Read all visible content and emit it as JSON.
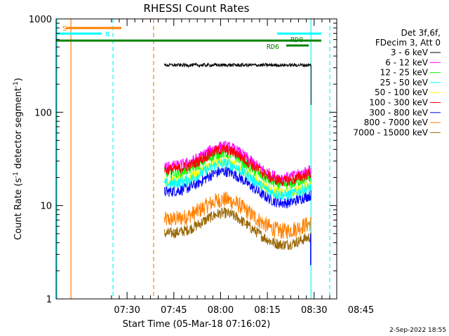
{
  "chart_data": {
    "type": "line",
    "title": "RHESSI Count Rates",
    "xlabel": "Start Time (05-Mar-18 07:16:02)",
    "ylabel_main": "Count Rate (s",
    "ylabel_sup1": "-1",
    "ylabel_mid": " detector segment",
    "ylabel_sup2": "-1",
    "ylabel_end": ")",
    "y_scale": "log",
    "ylim": [
      1,
      1000
    ],
    "y_ticks": [
      "1",
      "10",
      "100",
      "1000"
    ],
    "xlim_minutes": [
      7.25,
      97.25
    ],
    "x_ticks": [
      {
        "label": "07:30",
        "minute": 30
      },
      {
        "label": "07:45",
        "minute": 45
      },
      {
        "label": "08:00",
        "minute": 60
      },
      {
        "label": "08:15",
        "minute": 75
      },
      {
        "label": "08:30",
        "minute": 90
      },
      {
        "label": "08:45",
        "minute": 105
      }
    ],
    "grid": false,
    "legend_placement": "right",
    "legend_header": [
      "Det 3f,6f,",
      "FDecim 3, Att 0"
    ],
    "series": [
      {
        "name": "3 - 6 keV",
        "color": "#000000",
        "level": 320
      },
      {
        "name": "6 - 12 keV",
        "color": "#ff00ff",
        "level": 26
      },
      {
        "name": "12 - 25 keV",
        "color": "#00ff00",
        "level": 22
      },
      {
        "name": "25 - 50 keV",
        "color": "#00ffff",
        "level": 17
      },
      {
        "name": "50 - 100 keV",
        "color": "#ffff00",
        "level": 18
      },
      {
        "name": "100 - 300 keV",
        "color": "#ff0000",
        "level": 24
      },
      {
        "name": "300 - 800 keV",
        "color": "#0000ff",
        "level": 14
      },
      {
        "name": "800 - 7000 keV",
        "color": "#ff8000",
        "level": 7
      },
      {
        "name": "7000 - 15000 keV",
        "color": "#996600",
        "level": 5
      }
    ],
    "data_start_minute": 42,
    "data_end_minute": 89,
    "annotations": [
      {
        "label": "S",
        "color": "#ff8000"
      },
      {
        "label": "N",
        "color": "#00ffff"
      },
      {
        "label": "RD0",
        "color": "#008000"
      },
      {
        "label": "RD6",
        "color": "#008000"
      }
    ],
    "vlines": [
      {
        "minute": 7.5,
        "color": "#00ffff",
        "style": "solid"
      },
      {
        "minute": 12.0,
        "color": "#ff8000",
        "style": "solid"
      },
      {
        "minute": 25.5,
        "color": "#00ffff",
        "style": "dashed"
      },
      {
        "minute": 38.5,
        "color": "#ff8000",
        "style": "dashed"
      },
      {
        "minute": 89.0,
        "color": "#00ffff",
        "style": "solid"
      },
      {
        "minute": 95.0,
        "color": "#00ffff",
        "style": "dashed"
      }
    ]
  },
  "footer_date": "2-Sep-2022 18:55"
}
